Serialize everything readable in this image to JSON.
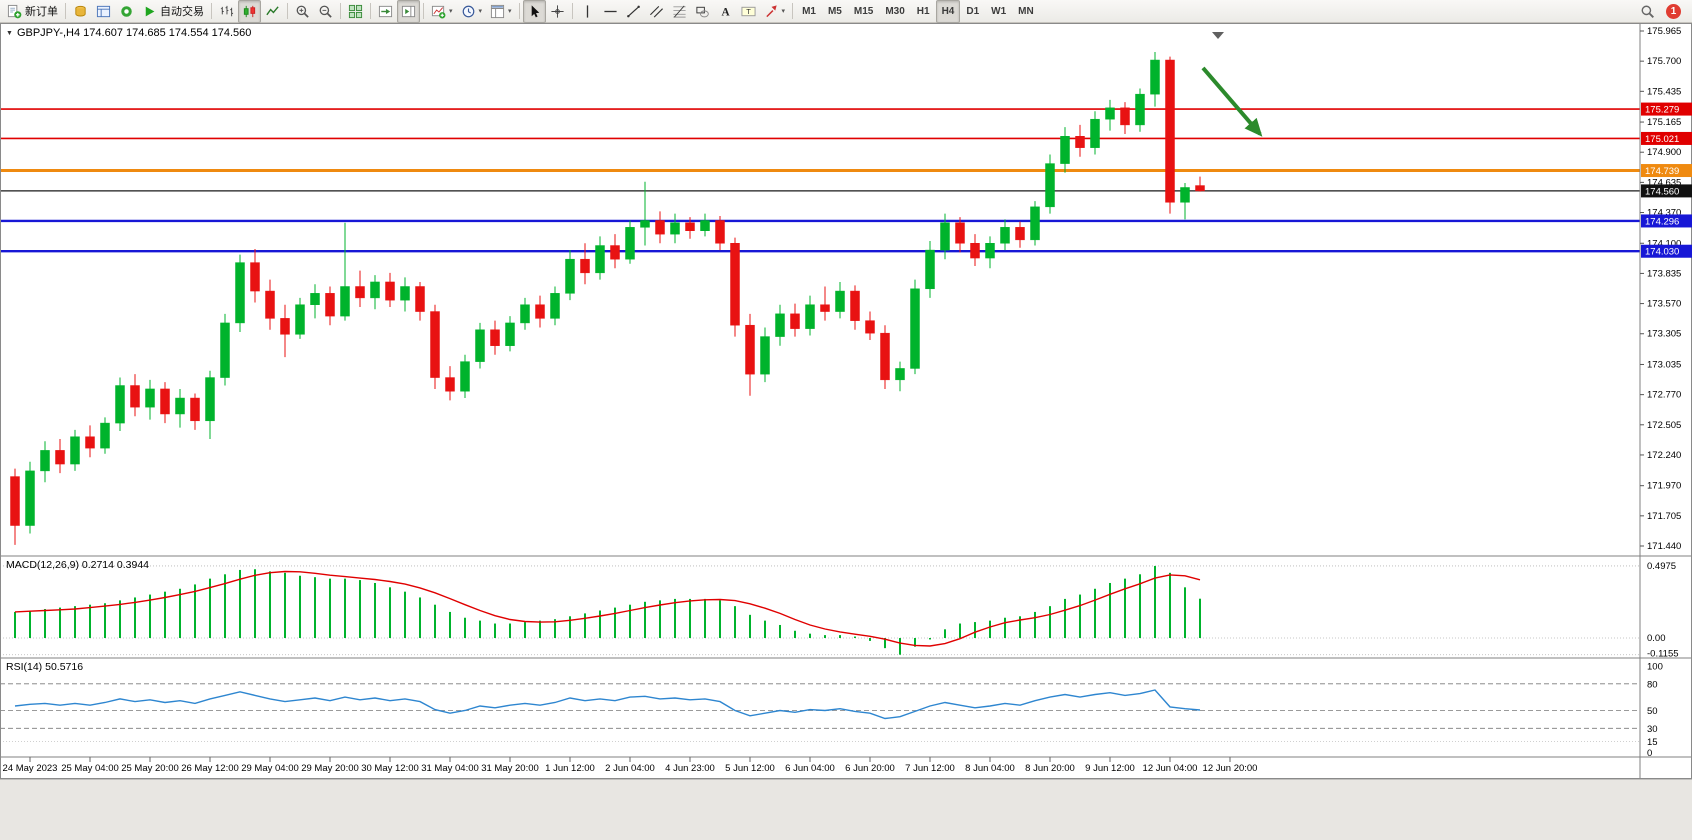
{
  "icons": {
    "chart_marker": "▼",
    "dropdown_caret": "▾"
  },
  "toolbar": {
    "groups": [
      {
        "name": "trade-group",
        "items": [
          {
            "name": "new-order-button",
            "icon": "new-order",
            "label": "新订单"
          }
        ]
      },
      {
        "name": "panels-group",
        "items": [
          {
            "name": "market-watch-button",
            "icon": "coins"
          },
          {
            "name": "data-window-button",
            "icon": "data-window"
          },
          {
            "name": "navigator-button",
            "icon": "headset"
          },
          {
            "name": "autotrading-button",
            "icon": "play",
            "label": "自动交易"
          }
        ]
      },
      {
        "name": "chart-type-group",
        "items": [
          {
            "name": "bar-chart-button",
            "icon": "bars"
          },
          {
            "name": "candlestick-chart-button",
            "icon": "candles",
            "active": true
          },
          {
            "name": "line-chart-button",
            "icon": "line"
          }
        ]
      },
      {
        "name": "zoom-group",
        "items": [
          {
            "name": "zoom-in-button",
            "icon": "zoom-in"
          },
          {
            "name": "zoom-out-button",
            "icon": "zoom-out"
          }
        ]
      },
      {
        "name": "windows-group",
        "items": [
          {
            "name": "tile-windows-button",
            "icon": "tile"
          }
        ]
      },
      {
        "name": "scroll-group",
        "items": [
          {
            "name": "auto-scroll-button",
            "icon": "auto-scroll"
          },
          {
            "name": "chart-shift-button",
            "icon": "chart-shift",
            "active": true
          }
        ]
      },
      {
        "name": "chart-tools-group",
        "items": [
          {
            "name": "indicators-button",
            "icon": "indicators",
            "dropdown": true
          },
          {
            "name": "periods-button",
            "icon": "clock",
            "dropdown": true
          },
          {
            "name": "templates-button",
            "icon": "template",
            "dropdown": true
          }
        ]
      },
      {
        "name": "pointer-group",
        "items": [
          {
            "name": "cursor-button",
            "icon": "cursor",
            "active": true
          },
          {
            "name": "crosshair-button",
            "icon": "crosshair"
          }
        ]
      },
      {
        "name": "objects-group",
        "items": [
          {
            "name": "vertical-line-button",
            "icon": "vline"
          },
          {
            "name": "horizontal-line-button",
            "icon": "hline"
          },
          {
            "name": "trendline-button",
            "icon": "trendline"
          },
          {
            "name": "channel-button",
            "icon": "channel"
          },
          {
            "name": "fibonacci-button",
            "icon": "fibo"
          },
          {
            "name": "shapes-button",
            "icon": "shapes"
          },
          {
            "name": "text-button",
            "icon": "text-a"
          },
          {
            "name": "text-label-button",
            "icon": "text-label"
          },
          {
            "name": "arrows-button",
            "icon": "arrows",
            "dropdown": true
          }
        ]
      },
      {
        "name": "timeframes-group",
        "items": [
          {
            "name": "tf-m1-button",
            "label": "M1"
          },
          {
            "name": "tf-m5-button",
            "label": "M5"
          },
          {
            "name": "tf-m15-button",
            "label": "M15"
          },
          {
            "name": "tf-m30-button",
            "label": "M30"
          },
          {
            "name": "tf-h1-button",
            "label": "H1"
          },
          {
            "name": "tf-h4-button",
            "label": "H4",
            "active": true
          },
          {
            "name": "tf-d1-button",
            "label": "D1"
          },
          {
            "name": "tf-w1-button",
            "label": "W1"
          },
          {
            "name": "tf-mn-button",
            "label": "MN"
          }
        ]
      }
    ],
    "right_items": [
      {
        "name": "search-button",
        "icon": "search"
      },
      {
        "name": "notification-badge",
        "badge": "1",
        "badge_color": "#e03c31"
      }
    ]
  },
  "chart_data": {
    "type": "candlestick",
    "title": "GBPJPY-,H4 174.607 174.685 174.554 174.560",
    "symbol": "GBPJPY-",
    "timeframe": "H4",
    "ohlc_current": {
      "open": "174.607",
      "high": "174.685",
      "low": "174.554",
      "close": "174.560"
    },
    "up_color": "#00b32c",
    "down_color": "#e81212",
    "price_axis": {
      "range": [
        171.44,
        175.965
      ],
      "labels": [
        "175.965",
        "175.700",
        "175.435",
        "175.165",
        "174.900",
        "174.635",
        "174.370",
        "174.100",
        "173.835",
        "173.570",
        "173.305",
        "173.035",
        "172.770",
        "172.505",
        "172.240",
        "171.970",
        "171.705",
        "171.440"
      ]
    },
    "time_axis": [
      "24 May 2023",
      "25 May 04:00",
      "25 May 20:00",
      "26 May 12:00",
      "29 May 04:00",
      "29 May 20:00",
      "30 May 12:00",
      "31 May 04:00",
      "31 May 20:00",
      "1 Jun 12:00",
      "2 Jun 04:00",
      "4 Jun 23:00",
      "5 Jun 12:00",
      "6 Jun 04:00",
      "6 Jun 20:00",
      "7 Jun 12:00",
      "8 Jun 04:00",
      "8 Jun 20:00",
      "9 Jun 12:00",
      "12 Jun 04:00",
      "12 Jun 20:00"
    ],
    "candles": [
      [
        172.05,
        172.12,
        171.45,
        171.62
      ],
      [
        171.62,
        172.18,
        171.55,
        172.1
      ],
      [
        172.1,
        172.36,
        172.0,
        172.28
      ],
      [
        172.28,
        172.38,
        172.08,
        172.16
      ],
      [
        172.16,
        172.46,
        172.1,
        172.4
      ],
      [
        172.4,
        172.5,
        172.22,
        172.3
      ],
      [
        172.3,
        172.57,
        172.25,
        172.52
      ],
      [
        172.52,
        172.92,
        172.45,
        172.85
      ],
      [
        172.85,
        172.95,
        172.58,
        172.66
      ],
      [
        172.66,
        172.9,
        172.55,
        172.82
      ],
      [
        172.82,
        172.88,
        172.52,
        172.6
      ],
      [
        172.6,
        172.82,
        172.48,
        172.74
      ],
      [
        172.74,
        172.78,
        172.46,
        172.54
      ],
      [
        172.54,
        172.98,
        172.38,
        172.92
      ],
      [
        172.92,
        173.48,
        172.85,
        173.4
      ],
      [
        173.4,
        174.0,
        173.32,
        173.93
      ],
      [
        173.93,
        174.05,
        173.58,
        173.68
      ],
      [
        173.68,
        173.78,
        173.34,
        173.44
      ],
      [
        173.44,
        173.56,
        173.1,
        173.3
      ],
      [
        173.3,
        173.62,
        173.26,
        173.56
      ],
      [
        173.56,
        173.74,
        173.44,
        173.66
      ],
      [
        173.66,
        173.72,
        173.38,
        173.46
      ],
      [
        173.46,
        174.28,
        173.42,
        173.72
      ],
      [
        173.72,
        173.86,
        173.54,
        173.62
      ],
      [
        173.62,
        173.82,
        173.52,
        173.76
      ],
      [
        173.76,
        173.84,
        173.54,
        173.6
      ],
      [
        173.6,
        173.8,
        173.5,
        173.72
      ],
      [
        173.72,
        173.76,
        173.42,
        173.5
      ],
      [
        173.5,
        173.56,
        172.82,
        172.92
      ],
      [
        172.92,
        173.02,
        172.72,
        172.8
      ],
      [
        172.8,
        173.12,
        172.74,
        173.06
      ],
      [
        173.06,
        173.4,
        173.0,
        173.34
      ],
      [
        173.34,
        173.42,
        173.12,
        173.2
      ],
      [
        173.2,
        173.46,
        173.15,
        173.4
      ],
      [
        173.4,
        173.62,
        173.34,
        173.56
      ],
      [
        173.56,
        173.64,
        173.36,
        173.44
      ],
      [
        173.44,
        173.72,
        173.38,
        173.66
      ],
      [
        173.66,
        174.04,
        173.6,
        173.96
      ],
      [
        173.96,
        174.1,
        173.74,
        173.84
      ],
      [
        173.84,
        174.16,
        173.78,
        174.08
      ],
      [
        174.08,
        174.18,
        173.88,
        173.96
      ],
      [
        173.96,
        174.3,
        173.92,
        174.24
      ],
      [
        174.24,
        174.64,
        174.08,
        174.3
      ],
      [
        174.3,
        174.38,
        174.1,
        174.18
      ],
      [
        174.18,
        174.36,
        174.1,
        174.28
      ],
      [
        174.28,
        174.33,
        174.14,
        174.21
      ],
      [
        174.21,
        174.36,
        174.16,
        174.3
      ],
      [
        174.3,
        174.34,
        174.04,
        174.1
      ],
      [
        174.1,
        174.15,
        173.28,
        173.38
      ],
      [
        173.38,
        173.48,
        172.76,
        172.95
      ],
      [
        172.95,
        173.36,
        172.88,
        173.28
      ],
      [
        173.28,
        173.56,
        173.2,
        173.48
      ],
      [
        173.48,
        173.57,
        173.28,
        173.35
      ],
      [
        173.35,
        173.64,
        173.29,
        173.56
      ],
      [
        173.56,
        173.72,
        173.42,
        173.5
      ],
      [
        173.5,
        173.76,
        173.44,
        173.68
      ],
      [
        173.68,
        173.73,
        173.34,
        173.42
      ],
      [
        173.42,
        173.5,
        173.25,
        173.31
      ],
      [
        173.31,
        173.38,
        172.82,
        172.9
      ],
      [
        172.9,
        173.06,
        172.8,
        173.0
      ],
      [
        173.0,
        173.78,
        172.95,
        173.7
      ],
      [
        173.7,
        174.12,
        173.62,
        174.04
      ],
      [
        174.04,
        174.36,
        173.96,
        174.28
      ],
      [
        174.28,
        174.33,
        174.02,
        174.1
      ],
      [
        174.1,
        174.18,
        173.9,
        173.97
      ],
      [
        173.97,
        174.16,
        173.88,
        174.1
      ],
      [
        174.1,
        174.31,
        174.04,
        174.24
      ],
      [
        174.24,
        174.29,
        174.06,
        174.13
      ],
      [
        174.13,
        174.47,
        174.08,
        174.42
      ],
      [
        174.42,
        174.88,
        174.36,
        174.8
      ],
      [
        174.8,
        175.12,
        174.72,
        175.04
      ],
      [
        175.04,
        175.14,
        174.86,
        174.94
      ],
      [
        174.94,
        175.26,
        174.88,
        175.19
      ],
      [
        175.19,
        175.36,
        175.09,
        175.29
      ],
      [
        175.29,
        175.34,
        175.06,
        175.14
      ],
      [
        175.14,
        175.46,
        175.08,
        175.41
      ],
      [
        175.41,
        175.78,
        175.3,
        175.71
      ],
      [
        175.71,
        175.74,
        174.36,
        174.46
      ],
      [
        174.46,
        174.63,
        174.31,
        174.59
      ],
      [
        174.607,
        174.685,
        174.554,
        174.56
      ]
    ],
    "hlines": [
      {
        "price": 175.279,
        "color": "#e00000",
        "width": 1.6,
        "badge": "#e00000"
      },
      {
        "price": 175.021,
        "color": "#e00000",
        "width": 1.6,
        "badge": "#e00000"
      },
      {
        "price": 174.739,
        "color": "#ef8a10",
        "width": 3,
        "badge": "#ef8a10"
      },
      {
        "price": 174.296,
        "color": "#1717d6",
        "width": 2.4,
        "badge": "#1717d6"
      },
      {
        "price": 174.03,
        "color": "#1717d6",
        "width": 2.4,
        "badge": "#1717d6"
      }
    ],
    "bid_line": {
      "price": 174.56,
      "color": "#1a1a1a",
      "width": 1.2,
      "badge": "#111111"
    },
    "annotations": [
      {
        "type": "arrow",
        "color": "#2c8a2c",
        "from_bar": 79.2,
        "from_price": 175.64,
        "to_bar": 83,
        "to_price": 175.06
      }
    ],
    "macd": {
      "title": "MACD(12,26,9)",
      "values_text": "0.2714 0.3944",
      "bar_color": "#00b32c",
      "signal_color": "#e00000",
      "axis": [
        {
          "v": 0.4975,
          "label": "0.4975"
        },
        {
          "v": 0,
          "label": "0.00"
        },
        {
          "v": -0.1155,
          "label": "-0.1155"
        }
      ],
      "values": [
        0.18,
        0.19,
        0.2,
        0.21,
        0.22,
        0.23,
        0.24,
        0.26,
        0.28,
        0.3,
        0.32,
        0.34,
        0.37,
        0.41,
        0.44,
        0.47,
        0.475,
        0.46,
        0.45,
        0.43,
        0.42,
        0.41,
        0.41,
        0.4,
        0.38,
        0.35,
        0.32,
        0.28,
        0.23,
        0.18,
        0.14,
        0.12,
        0.1,
        0.1,
        0.11,
        0.12,
        0.13,
        0.15,
        0.17,
        0.19,
        0.21,
        0.23,
        0.25,
        0.26,
        0.27,
        0.27,
        0.27,
        0.26,
        0.22,
        0.16,
        0.12,
        0.09,
        0.05,
        0.03,
        0.02,
        0.02,
        0.01,
        -0.02,
        -0.07,
        -0.115,
        -0.06,
        -0.01,
        0.06,
        0.1,
        0.11,
        0.12,
        0.14,
        0.15,
        0.18,
        0.22,
        0.27,
        0.3,
        0.34,
        0.38,
        0.41,
        0.44,
        0.4975,
        0.45,
        0.35,
        0.2714
      ]
    },
    "rsi": {
      "title": "RSI(14)",
      "value_text": "50.5716",
      "line_color": "#2e86d0",
      "range": [
        0,
        100
      ],
      "dashed_levels": [
        80,
        50,
        30
      ],
      "dotted_levels": [
        15
      ],
      "axis": [
        {
          "v": 100,
          "label": "100"
        },
        {
          "v": 80,
          "label": "80"
        },
        {
          "v": 50,
          "label": "50"
        },
        {
          "v": 30,
          "label": "30"
        },
        {
          "v": 15,
          "label": "15"
        },
        {
          "v": 0,
          "label": "0"
        }
      ],
      "values": [
        55,
        57,
        58,
        56,
        58,
        56,
        59,
        63,
        60,
        62,
        59,
        61,
        58,
        63,
        67,
        71,
        67,
        63,
        60,
        62,
        64,
        61,
        65,
        62,
        64,
        61,
        63,
        60,
        51,
        47,
        50,
        55,
        53,
        56,
        58,
        56,
        59,
        64,
        61,
        63,
        61,
        65,
        66,
        63,
        64,
        62,
        63,
        60,
        50,
        44,
        47,
        50,
        48,
        51,
        50,
        52,
        49,
        47,
        41,
        43,
        49,
        55,
        59,
        56,
        53,
        55,
        58,
        56,
        61,
        65,
        68,
        65,
        68,
        70,
        67,
        69,
        73,
        54,
        52,
        50.57
      ]
    }
  }
}
